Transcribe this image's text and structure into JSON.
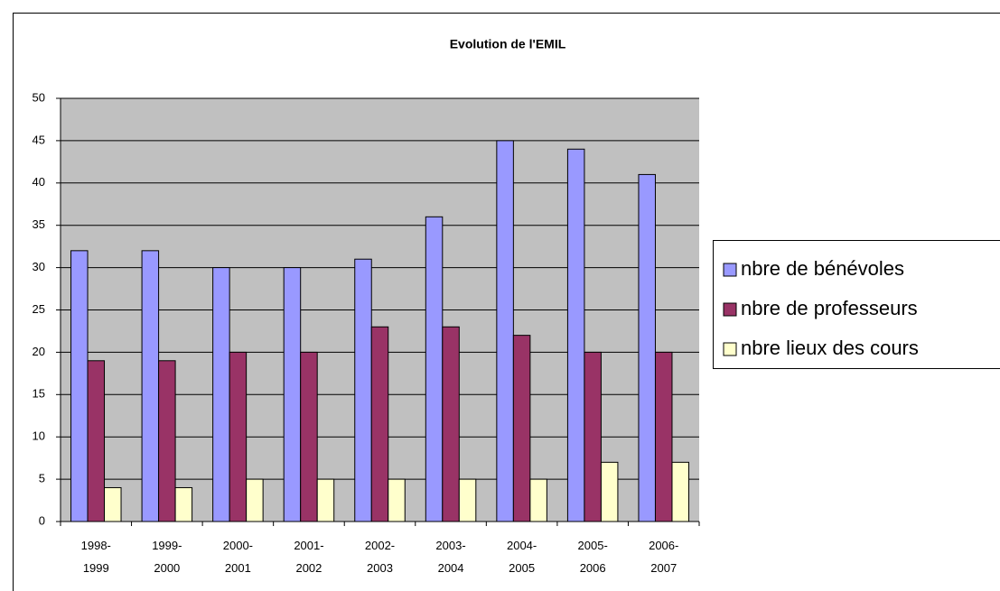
{
  "chart_data": {
    "type": "bar",
    "title": "Evolution de l'EMIL",
    "categories": [
      "1998-1999",
      "1999-2000",
      "2000-2001",
      "2001-2002",
      "2002-2003",
      "2003-2004",
      "2004-2005",
      "2005-2006",
      "2006-2007"
    ],
    "series": [
      {
        "name": "nbre de bénévoles",
        "color": "#9999ff",
        "values": [
          32,
          32,
          30,
          30,
          31,
          36,
          45,
          44,
          41
        ]
      },
      {
        "name": "nbre de professeurs",
        "color": "#993366",
        "values": [
          19,
          19,
          20,
          20,
          23,
          23,
          22,
          20,
          20
        ]
      },
      {
        "name": "nbre lieux des cours",
        "color": "#ffffcc",
        "values": [
          4,
          4,
          5,
          5,
          5,
          5,
          5,
          7,
          7
        ]
      }
    ],
    "ylim": [
      0,
      50
    ],
    "yticks": [
      0,
      5,
      10,
      15,
      20,
      25,
      30,
      35,
      40,
      45,
      50
    ],
    "grid": true,
    "legend": "right"
  }
}
